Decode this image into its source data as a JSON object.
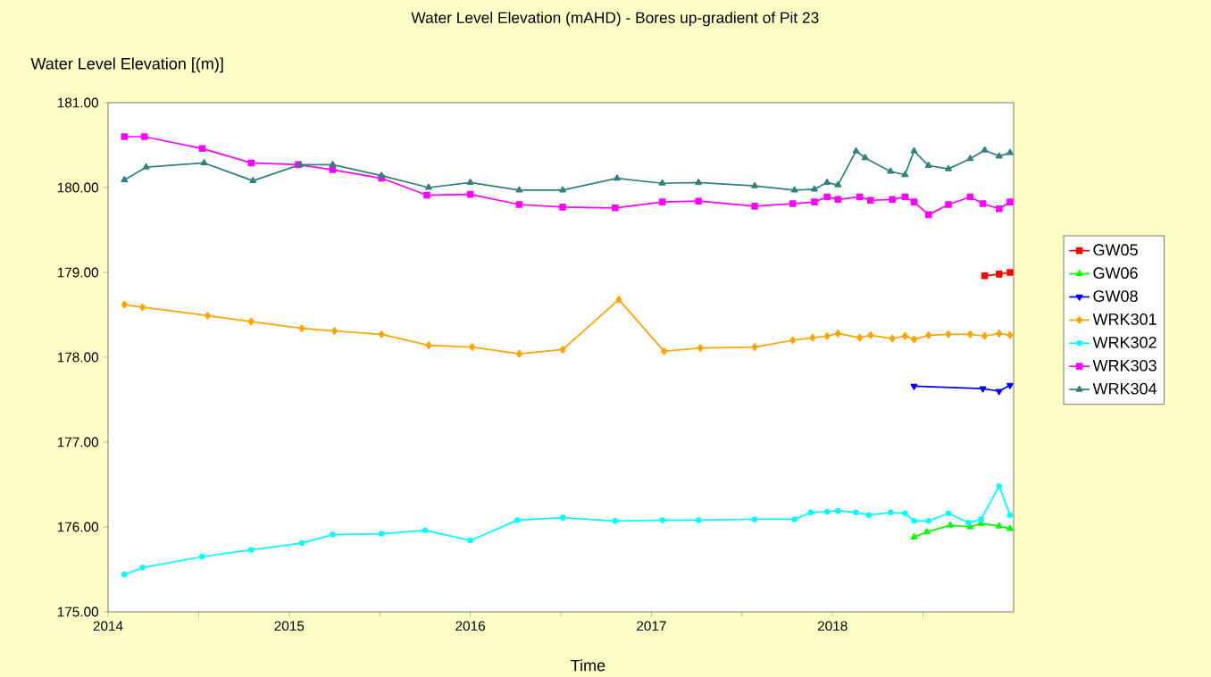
{
  "chart_data": {
    "type": "line",
    "title": "Water Level Elevation (mAHD) - Bores up-gradient of Pit 23",
    "xlabel": "Time",
    "ylabel": "Water Level Elevation [(m)]",
    "xlim": [
      2014,
      2019
    ],
    "ylim": [
      175,
      181
    ],
    "xticks": [
      2014,
      {
        "value": 2014.5,
        "label": null
      },
      2015,
      {
        "value": 2015.5,
        "label": null
      },
      2016,
      {
        "value": 2016.5,
        "label": null
      },
      2017,
      {
        "value": 2017.5,
        "label": null
      },
      2018,
      {
        "value": 2018.5,
        "label": null
      }
    ],
    "yticks": [
      {
        "value": 175,
        "label": "175.00"
      },
      {
        "value": 176,
        "label": "176.00"
      },
      {
        "value": 177,
        "label": "177.00"
      },
      {
        "value": 178,
        "label": "178.00"
      },
      {
        "value": 179,
        "label": "179.00"
      },
      {
        "value": 180,
        "label": "180.00"
      },
      {
        "value": 181,
        "label": "181.00"
      }
    ],
    "grid": false,
    "legend": "right",
    "line_style": "solid",
    "series": [
      {
        "name": "GW05",
        "color": "#ff0000",
        "marker": "square",
        "x": [
          2018.84,
          2018.92,
          2018.98
        ],
        "values": [
          178.96,
          178.98,
          179.0
        ]
      },
      {
        "name": "GW06",
        "color": "#00ff00",
        "marker": "triangle",
        "x": [
          2018.45,
          2018.52,
          2018.65,
          2018.76,
          2018.82,
          2018.92,
          2018.98
        ],
        "values": [
          175.88,
          175.94,
          176.02,
          176.0,
          176.04,
          176.01,
          175.98
        ]
      },
      {
        "name": "GW08",
        "color": "#0000ff",
        "marker": "triangle",
        "x": [
          2018.45,
          2018.83,
          2018.92,
          2018.98
        ],
        "values": [
          177.66,
          177.63,
          177.6,
          177.67
        ]
      },
      {
        "name": "WRK301",
        "color": "#ffa500",
        "marker": "diamond",
        "x": [
          2014.09,
          2014.19,
          2014.55,
          2014.79,
          2015.07,
          2015.25,
          2015.51,
          2015.77,
          2016.01,
          2016.27,
          2016.51,
          2016.82,
          2017.07,
          2017.27,
          2017.57,
          2017.78,
          2017.89,
          2017.97,
          2018.03,
          2018.15,
          2018.21,
          2018.33,
          2018.4,
          2018.45,
          2018.53,
          2018.64,
          2018.76,
          2018.84,
          2018.92,
          2018.98
        ],
        "values": [
          178.62,
          178.59,
          178.49,
          178.42,
          178.34,
          178.31,
          178.27,
          178.14,
          178.12,
          178.04,
          178.09,
          178.68,
          178.07,
          178.11,
          178.12,
          178.2,
          178.23,
          178.25,
          178.28,
          178.23,
          178.26,
          178.22,
          178.25,
          178.21,
          178.26,
          178.27,
          178.27,
          178.25,
          178.28,
          178.26
        ]
      },
      {
        "name": "WRK302",
        "color": "#00ffff",
        "marker": "circle",
        "x": [
          2014.09,
          2014.19,
          2014.52,
          2014.79,
          2015.07,
          2015.24,
          2015.51,
          2015.75,
          2016.0,
          2016.26,
          2016.51,
          2016.8,
          2017.06,
          2017.26,
          2017.57,
          2017.79,
          2017.88,
          2017.97,
          2018.03,
          2018.13,
          2018.2,
          2018.32,
          2018.4,
          2018.45,
          2018.53,
          2018.64,
          2018.75,
          2018.82,
          2018.92,
          2018.98
        ],
        "values": [
          175.44,
          175.52,
          175.65,
          175.73,
          175.81,
          175.91,
          175.92,
          175.96,
          175.84,
          176.08,
          176.11,
          176.07,
          176.08,
          176.08,
          176.09,
          176.09,
          176.17,
          176.18,
          176.19,
          176.17,
          176.14,
          176.17,
          176.16,
          176.07,
          176.07,
          176.16,
          176.05,
          176.09,
          176.48,
          176.14
        ]
      },
      {
        "name": "WRK303",
        "color": "#ff00ff",
        "marker": "square",
        "x": [
          2014.09,
          2014.2,
          2014.52,
          2014.79,
          2015.05,
          2015.24,
          2015.51,
          2015.76,
          2016.0,
          2016.27,
          2016.51,
          2016.8,
          2017.06,
          2017.26,
          2017.57,
          2017.78,
          2017.9,
          2017.97,
          2018.03,
          2018.15,
          2018.21,
          2018.33,
          2018.4,
          2018.45,
          2018.53,
          2018.64,
          2018.76,
          2018.83,
          2018.92,
          2018.98
        ],
        "values": [
          180.6,
          180.6,
          180.46,
          180.29,
          180.27,
          180.21,
          180.11,
          179.91,
          179.92,
          179.8,
          179.77,
          179.76,
          179.83,
          179.84,
          179.78,
          179.81,
          179.83,
          179.89,
          179.86,
          179.89,
          179.85,
          179.86,
          179.89,
          179.83,
          179.68,
          179.8,
          179.89,
          179.81,
          179.75,
          179.83
        ]
      },
      {
        "name": "WRK304",
        "color": "#338080",
        "marker": "triangle",
        "x": [
          2014.09,
          2014.21,
          2014.53,
          2014.8,
          2015.06,
          2015.24,
          2015.51,
          2015.77,
          2016.0,
          2016.27,
          2016.51,
          2016.81,
          2017.06,
          2017.26,
          2017.57,
          2017.79,
          2017.9,
          2017.97,
          2018.03,
          2018.13,
          2018.18,
          2018.32,
          2018.4,
          2018.45,
          2018.53,
          2018.64,
          2018.76,
          2018.84,
          2018.92,
          2018.98
        ],
        "values": [
          180.09,
          180.24,
          180.29,
          180.08,
          180.27,
          180.27,
          180.14,
          180.0,
          180.06,
          179.97,
          179.97,
          180.11,
          180.05,
          180.06,
          180.02,
          179.97,
          179.98,
          180.06,
          180.03,
          180.43,
          180.35,
          180.19,
          180.15,
          180.43,
          180.26,
          180.22,
          180.34,
          180.44,
          180.37,
          180.41
        ]
      }
    ]
  }
}
